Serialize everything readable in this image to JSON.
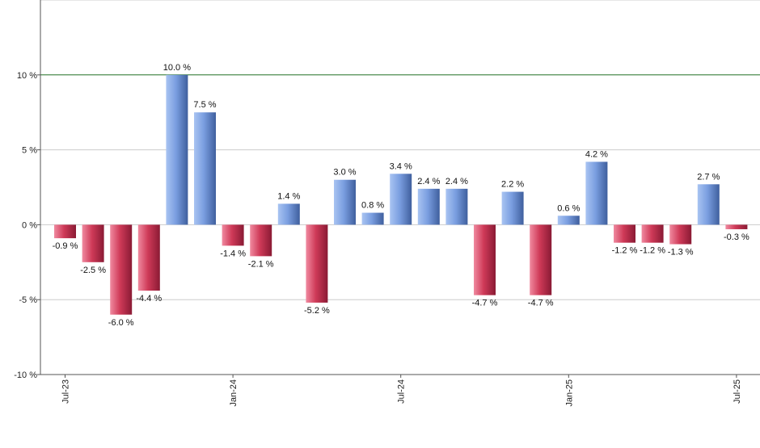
{
  "chart_data": {
    "type": "bar",
    "title": "",
    "xlabel": "",
    "ylabel": "",
    "ylim": [
      -10,
      15
    ],
    "y_ticks": [
      -10,
      -5,
      0,
      5,
      10
    ],
    "y_tick_labels": [
      "-10 %",
      "-5 %",
      "0 %",
      "5 %",
      "10 %"
    ],
    "reference_line": {
      "value": 10,
      "color": "#2e7d32"
    },
    "grid": "horizontal",
    "legend": "none",
    "categories": [
      "2023-07",
      "2023-08",
      "2023-09",
      "2023-10",
      "2023-11",
      "2023-12",
      "2024-01",
      "2024-02",
      "2024-03",
      "2024-04",
      "2024-05",
      "2024-06",
      "2024-07",
      "2024-08",
      "2024-09",
      "2024-10",
      "2024-11",
      "2024-12",
      "2025-01",
      "2025-02",
      "2025-03",
      "2025-04",
      "2025-05",
      "2025-06",
      "2025-07"
    ],
    "values": [
      -0.9,
      -2.5,
      -6.0,
      -4.4,
      10.0,
      7.5,
      -1.4,
      -2.1,
      1.4,
      -5.2,
      3.0,
      0.8,
      3.4,
      2.4,
      2.4,
      -4.7,
      2.2,
      -4.7,
      0.6,
      4.2,
      -1.2,
      -1.2,
      -1.3,
      2.7,
      -0.3
    ],
    "value_labels": [
      "-0.9 %",
      "-2.5 %",
      "-6.0 %",
      "-4.4 %",
      "10.0 %",
      "7.5 %",
      "-1.4 %",
      "-2.1 %",
      "1.4 %",
      "-5.2 %",
      "3.0 %",
      "0.8 %",
      "3.4 %",
      "2.4 %",
      "2.4 %",
      "-4.7 %",
      "2.2 %",
      "-4.7 %",
      "0.6 %",
      "4.2 %",
      "-1.2 %",
      "-1.2 %",
      "-1.3 %",
      "2.7 %",
      "-0.3 %"
    ],
    "x_tick_labels": [
      {
        "category": "2023-07",
        "label": "Jul-23"
      },
      {
        "category": "2024-01",
        "label": "Jan-24"
      },
      {
        "category": "2024-07",
        "label": "Jul-24"
      },
      {
        "category": "2025-01",
        "label": "Jan-25"
      },
      {
        "category": "2025-07",
        "label": "Jul-25"
      }
    ],
    "colors": {
      "positive": "#6f94d6",
      "negative": "#c8324f",
      "grid": "#cccccc",
      "axis": "#555555"
    }
  }
}
